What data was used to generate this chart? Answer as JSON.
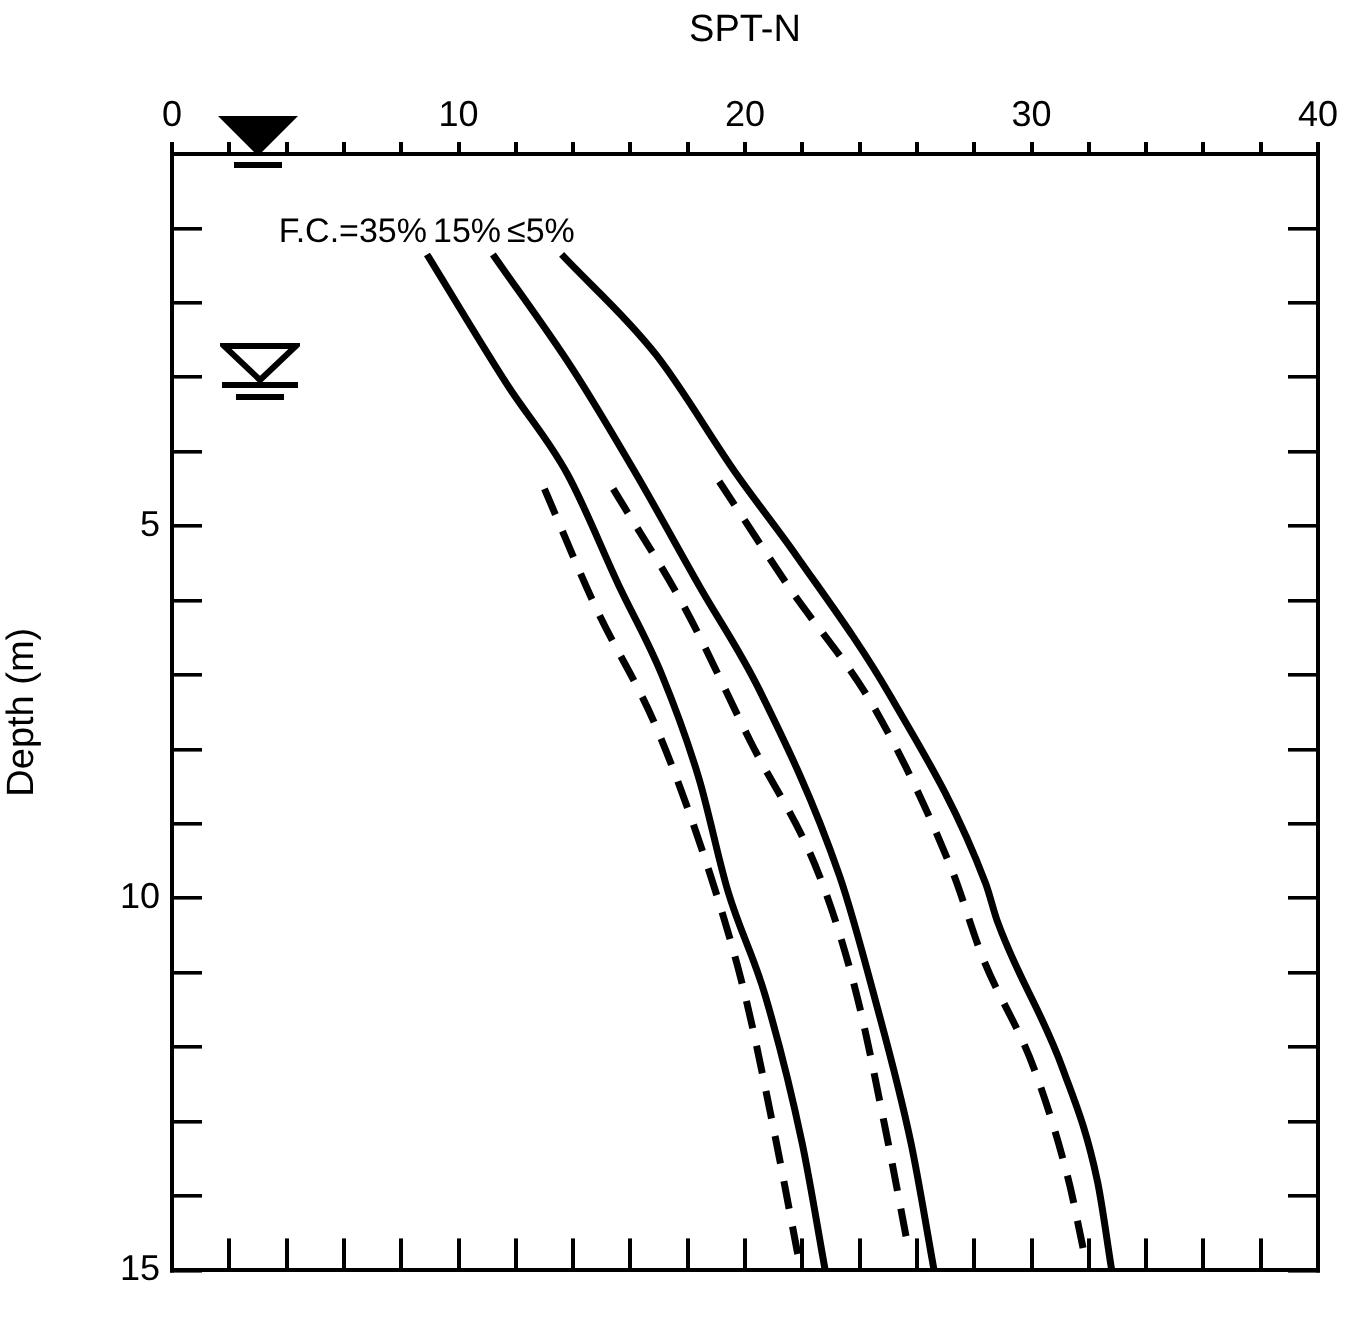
{
  "chart_data": {
    "type": "line",
    "xlabel": "SPT-N",
    "ylabel": "Depth (m)",
    "xlim": [
      0,
      40
    ],
    "ylim": [
      15,
      0
    ],
    "xticks": [
      0,
      {
        "value": 2,
        "label": null
      },
      {
        "value": 4,
        "label": null
      },
      {
        "value": 6,
        "label": null
      },
      {
        "value": 8,
        "label": null
      },
      10,
      {
        "value": 12,
        "label": null
      },
      {
        "value": 14,
        "label": null
      },
      {
        "value": 16,
        "label": null
      },
      {
        "value": 18,
        "label": null
      },
      20,
      {
        "value": 22,
        "label": null
      },
      {
        "value": 24,
        "label": null
      },
      {
        "value": 26,
        "label": null
      },
      {
        "value": 28,
        "label": null
      },
      30,
      {
        "value": 32,
        "label": null
      },
      {
        "value": 34,
        "label": null
      },
      {
        "value": 36,
        "label": null
      },
      {
        "value": 38,
        "label": null
      },
      40
    ],
    "yticks": [
      {
        "value": 0,
        "label": null
      },
      {
        "value": 1,
        "label": null
      },
      {
        "value": 2,
        "label": null
      },
      {
        "value": 3,
        "label": null
      },
      {
        "value": 4,
        "label": null
      },
      5,
      {
        "value": 6,
        "label": null
      },
      {
        "value": 7,
        "label": null
      },
      {
        "value": 8,
        "label": null
      },
      {
        "value": 9,
        "label": null
      },
      10,
      {
        "value": 11,
        "label": null
      },
      {
        "value": 12,
        "label": null
      },
      {
        "value": 13,
        "label": null
      },
      {
        "value": 14,
        "label": null
      },
      15
    ],
    "grid": false,
    "legend": "top left",
    "marker": "none",
    "series": [
      {
        "name": "F.C.=35%",
        "color": "#000000",
        "line_style": "solid",
        "x": [
          8.9,
          11.7,
          13.8,
          15.6,
          17.1,
          18.4,
          19.4,
          20.7,
          22.0,
          22.8
        ],
        "values": [
          1.35,
          3.1,
          4.3,
          5.8,
          7.0,
          8.4,
          9.9,
          11.3,
          13.3,
          15.0
        ]
      },
      {
        "name": "15%",
        "color": "#000000",
        "line_style": "solid",
        "x": [
          11.2,
          14.0,
          16.2,
          18.4,
          20.5,
          23.3,
          24.5,
          25.8,
          26.6
        ],
        "values": [
          1.35,
          2.9,
          4.3,
          5.8,
          7.2,
          9.7,
          11.3,
          13.3,
          15.0
        ]
      },
      {
        "name": "≤5%",
        "color": "#000000",
        "line_style": "solid",
        "x": [
          13.6,
          16.9,
          19.7,
          21.8,
          25.1,
          28.4,
          28.8,
          31.1,
          32.3,
          32.8
        ],
        "values": [
          1.35,
          2.7,
          4.3,
          5.4,
          7.3,
          9.8,
          10.3,
          12.3,
          13.8,
          15.0
        ]
      },
      {
        "color": "#000000",
        "line_style": "dashed",
        "x": [
          13.0,
          14.8,
          16.9,
          18.8,
          20.0,
          21.0,
          21.9
        ],
        "values": [
          4.5,
          6.1,
          7.7,
          9.7,
          11.3,
          13.1,
          14.9
        ]
      },
      {
        "color": "#000000",
        "line_style": "dashed",
        "x": [
          15.4,
          17.9,
          20.2,
          22.6,
          23.9,
          24.9,
          25.7
        ],
        "values": [
          4.5,
          6.1,
          7.9,
          9.7,
          11.3,
          13.1,
          14.7
        ]
      },
      {
        "color": "#000000",
        "line_style": "dashed",
        "x": [
          19.1,
          21.5,
          24.6,
          27.2,
          28.3,
          30.1,
          31.3,
          31.8
        ],
        "values": [
          4.4,
          5.8,
          7.5,
          9.6,
          10.8,
          12.3,
          13.8,
          14.7
        ]
      }
    ]
  }
}
